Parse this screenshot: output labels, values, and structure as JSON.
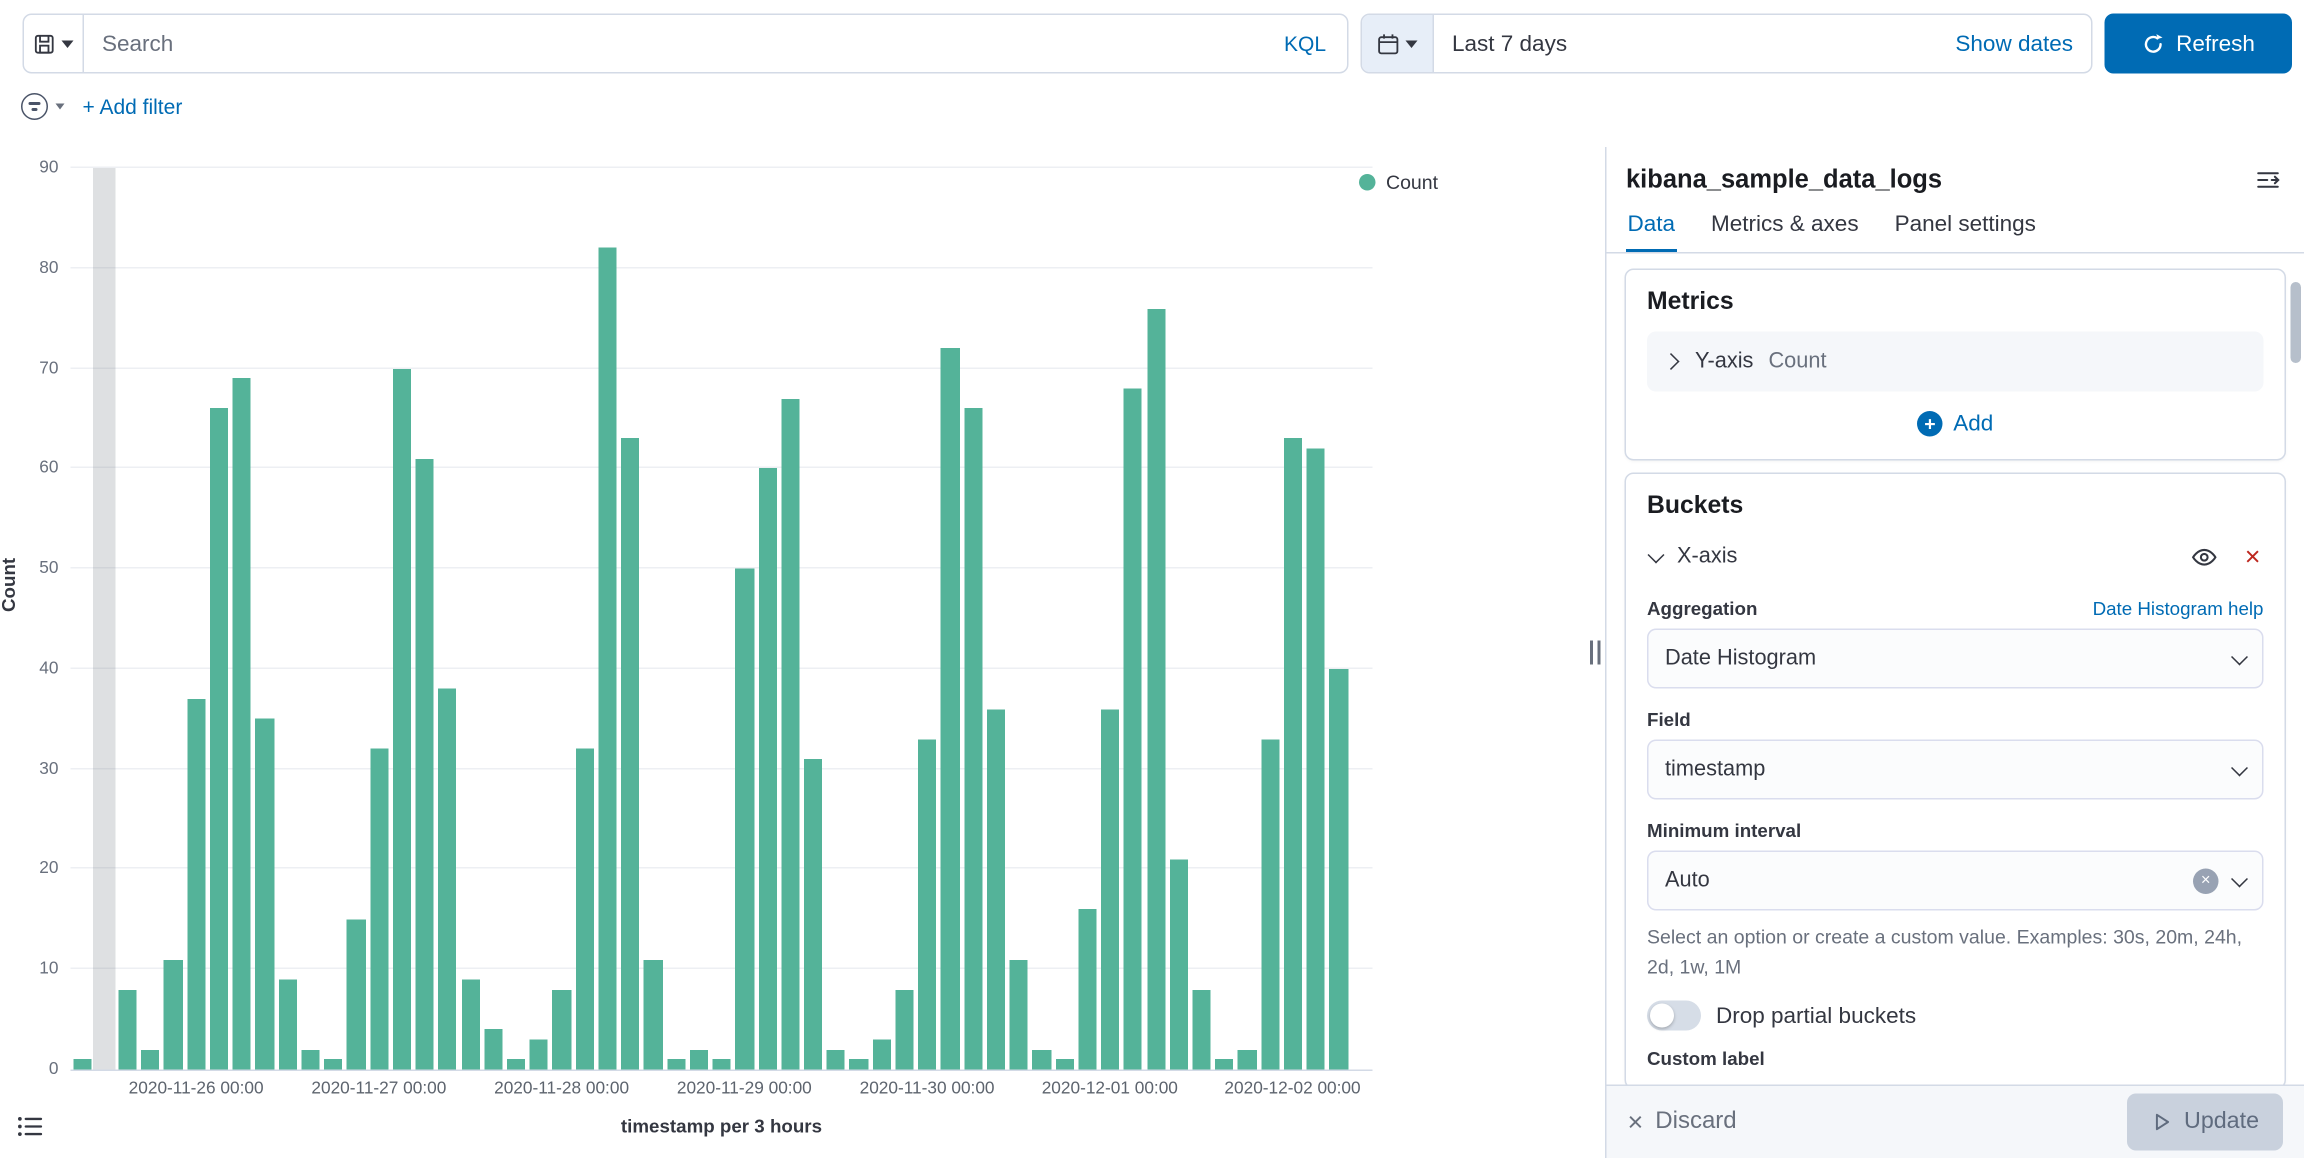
{
  "query_bar": {
    "search_placeholder": "Search",
    "kql_label": "KQL",
    "date_range": "Last 7 days",
    "show_dates_label": "Show dates",
    "refresh_label": "Refresh"
  },
  "filter_bar": {
    "add_filter_label": "+ Add filter"
  },
  "chart_data": {
    "type": "bar",
    "title": "",
    "ylabel": "Count",
    "xlabel": "timestamp per 3 hours",
    "ylim": [
      0,
      90
    ],
    "y_tick_step": 10,
    "grid": true,
    "legend_position": "right",
    "series": [
      {
        "name": "Count",
        "color": "#54B399"
      }
    ],
    "categories": [
      "2020-11-25 09:00",
      "2020-11-25 12:00",
      "2020-11-25 15:00",
      "2020-11-25 18:00",
      "2020-11-25 21:00",
      "2020-11-26 00:00",
      "2020-11-26 03:00",
      "2020-11-26 06:00",
      "2020-11-26 09:00",
      "2020-11-26 12:00",
      "2020-11-26 15:00",
      "2020-11-26 18:00",
      "2020-11-26 21:00",
      "2020-11-27 00:00",
      "2020-11-27 03:00",
      "2020-11-27 06:00",
      "2020-11-27 09:00",
      "2020-11-27 12:00",
      "2020-11-27 15:00",
      "2020-11-27 18:00",
      "2020-11-27 21:00",
      "2020-11-28 00:00",
      "2020-11-28 03:00",
      "2020-11-28 06:00",
      "2020-11-28 09:00",
      "2020-11-28 12:00",
      "2020-11-28 15:00",
      "2020-11-28 18:00",
      "2020-11-28 21:00",
      "2020-11-29 00:00",
      "2020-11-29 03:00",
      "2020-11-29 06:00",
      "2020-11-29 09:00",
      "2020-11-29 12:00",
      "2020-11-29 15:00",
      "2020-11-29 18:00",
      "2020-11-29 21:00",
      "2020-11-30 00:00",
      "2020-11-30 03:00",
      "2020-11-30 06:00",
      "2020-11-30 09:00",
      "2020-11-30 12:00",
      "2020-11-30 15:00",
      "2020-11-30 18:00",
      "2020-11-30 21:00",
      "2020-12-01 00:00",
      "2020-12-01 03:00",
      "2020-12-01 06:00",
      "2020-12-01 09:00",
      "2020-12-01 12:00",
      "2020-12-01 15:00",
      "2020-12-01 18:00",
      "2020-12-01 21:00",
      "2020-12-02 00:00",
      "2020-12-02 03:00",
      "2020-12-02 06:00",
      "2020-12-02 09:00"
    ],
    "values": [
      1,
      0,
      8,
      2,
      11,
      37,
      66,
      69,
      35,
      9,
      2,
      1,
      15,
      32,
      70,
      61,
      38,
      9,
      4,
      1,
      3,
      8,
      32,
      82,
      63,
      11,
      1,
      2,
      1,
      50,
      60,
      67,
      31,
      2,
      1,
      3,
      8,
      33,
      72,
      66,
      36,
      11,
      2,
      1,
      16,
      36,
      68,
      76,
      21,
      8,
      1,
      2,
      33,
      63,
      62,
      40,
      0
    ],
    "x_tick_labels": [
      "2020-11-26 00:00",
      "2020-11-27 00:00",
      "2020-11-28 00:00",
      "2020-11-29 00:00",
      "2020-11-30 00:00",
      "2020-12-01 00:00",
      "2020-12-02 00:00"
    ],
    "x_tick_indices": [
      5,
      13,
      21,
      29,
      37,
      45,
      53
    ],
    "partial_bucket_endzone_slot": 1
  },
  "sidebar": {
    "title": "kibana_sample_data_logs",
    "tabs": [
      {
        "label": "Data",
        "active": true
      },
      {
        "label": "Metrics & axes",
        "active": false
      },
      {
        "label": "Panel settings",
        "active": false
      }
    ],
    "metrics_card": {
      "heading": "Metrics",
      "row_label": "Y-axis",
      "row_value": "Count",
      "add_label": "Add"
    },
    "buckets_card": {
      "heading": "Buckets",
      "row_label": "X-axis",
      "aggregation_label": "Aggregation",
      "aggregation_help_link": "Date Histogram help",
      "aggregation_value": "Date Histogram",
      "field_label": "Field",
      "field_value": "timestamp",
      "min_interval_label": "Minimum interval",
      "min_interval_value": "Auto",
      "min_interval_help": "Select an option or create a custom value. Examples: 30s, 20m, 24h, 2d, 1w, 1M",
      "drop_partial_label": "Drop partial buckets",
      "drop_partial_on": false,
      "custom_label_label": "Custom label"
    },
    "footer": {
      "discard_label": "Discard",
      "update_label": "Update"
    }
  },
  "colors": {
    "primary": "#006BB4",
    "bar": "#54B399",
    "danger": "#BD271E",
    "text": "#343741",
    "text_subdued": "#69707D",
    "border": "#D3DAE6"
  }
}
